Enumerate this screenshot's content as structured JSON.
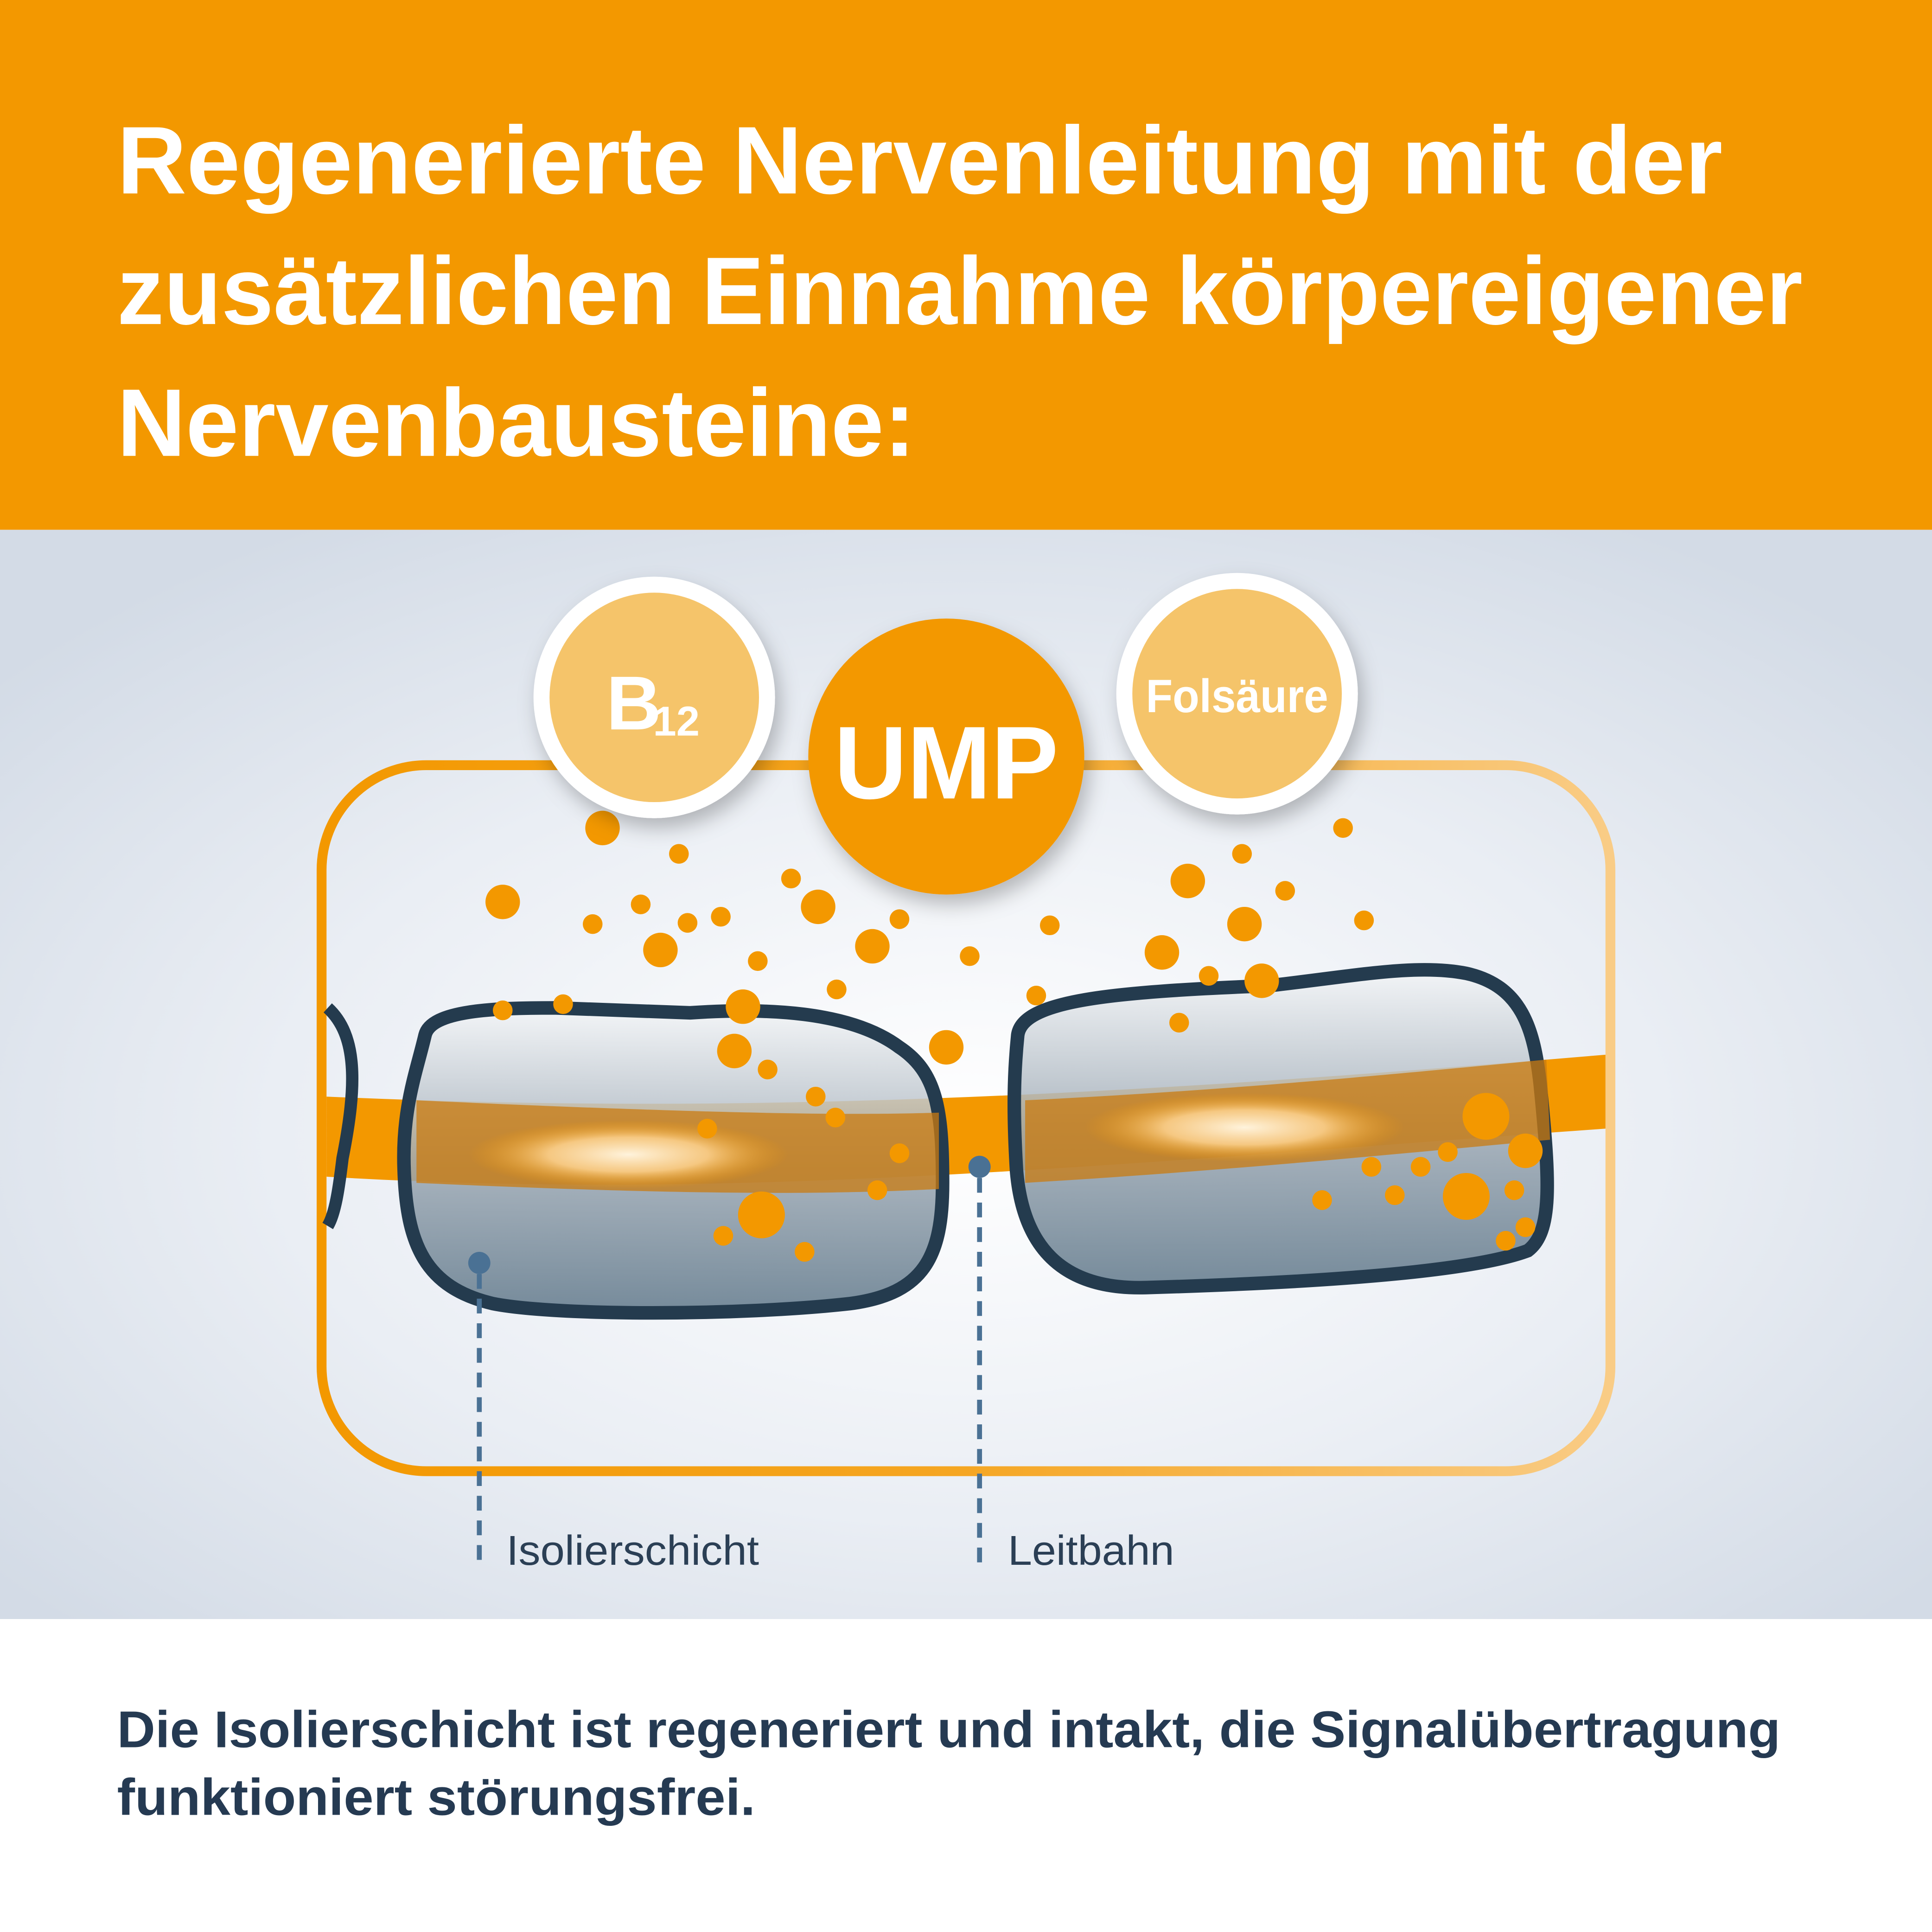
{
  "header": {
    "title_lines": [
      "Regenerierte Nervenleitung mit der",
      "zusätzlichen Einnahme körpereigener",
      "Nervenbausteine:"
    ],
    "background": "#F39800"
  },
  "diagram": {
    "badges": {
      "b12_main": "B",
      "b12_sub": "12",
      "ump": "UMP",
      "folsaeure": "Folsäure"
    },
    "labels": {
      "insulation": "Isolierschicht",
      "conduction": "Leitbahn"
    },
    "colors": {
      "orange": "#F39800",
      "light_orange": "#F5C46A",
      "dark_outline": "#243B4E",
      "marker_blue": "#4A7194"
    }
  },
  "caption": {
    "lines": [
      "Die Isolierschicht ist regeneriert und intakt, die Signalübertragung",
      "funktioniert störungsfrei."
    ]
  }
}
